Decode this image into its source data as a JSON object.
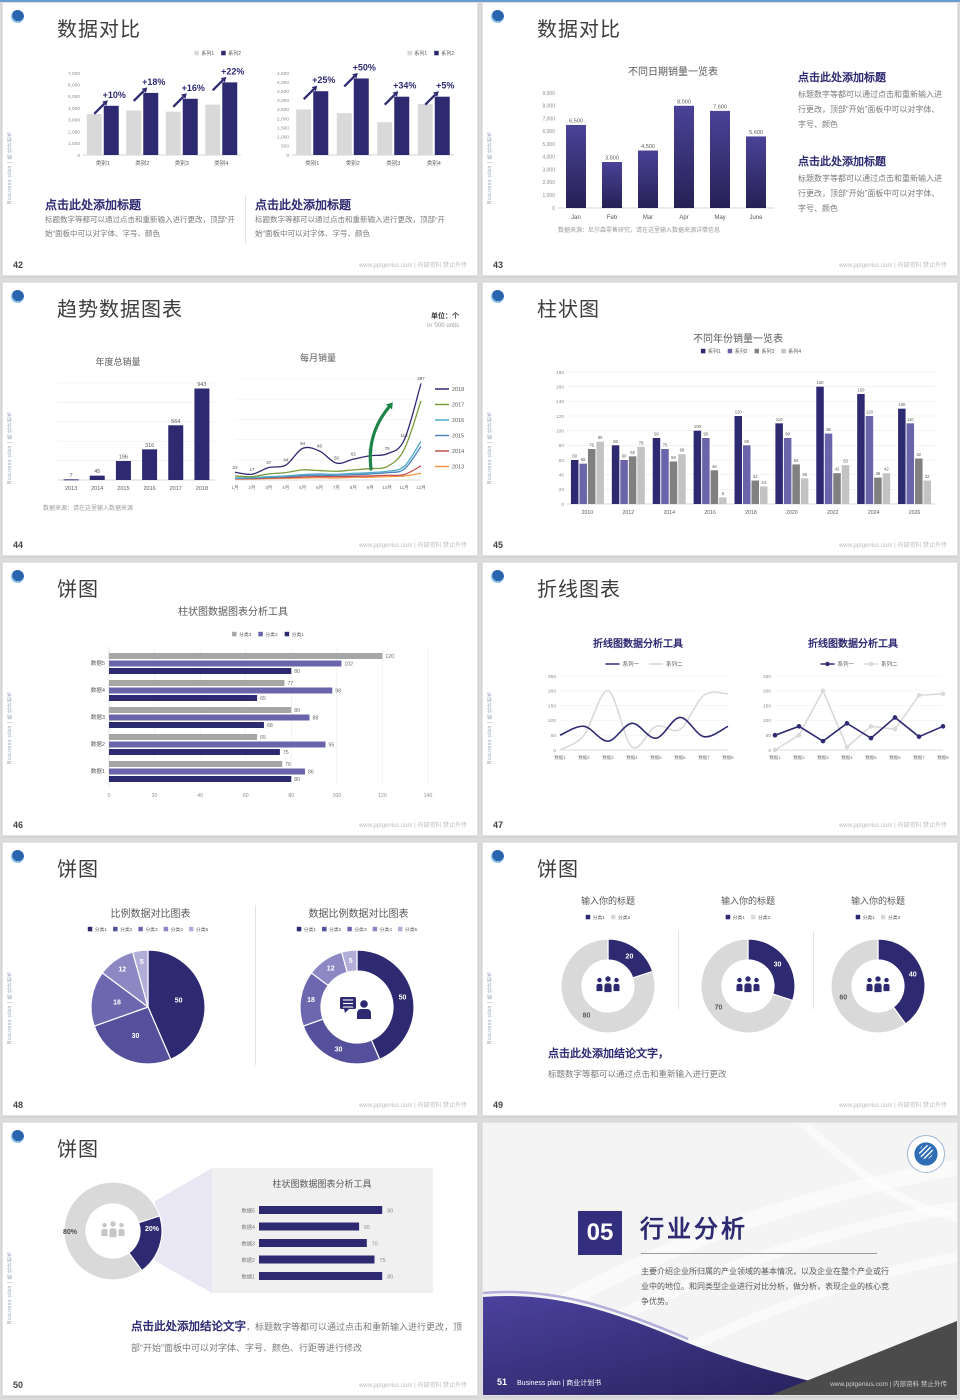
{
  "global": {
    "footer_url": "www.pptgenius.com | 内部资料 禁止外传",
    "sidebar_text": "Business plan | 商业计划书"
  },
  "palette": {
    "navy": "#2e2a72",
    "midPurple": "#6a64ab",
    "grayBar": "#d9d9d9",
    "gray3": "#808080",
    "gray4": "#c3c3c3",
    "grayA": "#a6a6a6",
    "green": "#1e8449",
    "pie": [
      "#2e2a72",
      "#55509c",
      "#6d67b0",
      "#8d88c4",
      "#b3aed8"
    ],
    "years": [
      "#2e2a72",
      "#7c9b3c",
      "#4bacc6",
      "#4f81bd",
      "#c0504d",
      "#f79646"
    ],
    "line2": [
      "#2e2a72",
      "#d9d9d9"
    ]
  },
  "slides": [
    {
      "page": "42",
      "title": "数据对比",
      "chart_data": [
        {
          "type": "bar",
          "legend": [
            "系列1",
            "系列2"
          ],
          "categories": [
            "类别1",
            "类别2",
            "类别3",
            "类别4"
          ],
          "series": [
            {
              "name": "系列1",
              "values": [
                3500,
                3800,
                3700,
                4300
              ]
            },
            {
              "name": "系列2",
              "values": [
                4200,
                5300,
                4800,
                6200
              ]
            }
          ],
          "annotations": [
            "+10%",
            "+18%",
            "+16%",
            "+22%"
          ],
          "ylim": [
            0,
            7000
          ],
          "ytick": 1000
        },
        {
          "type": "bar",
          "legend": [
            "系列1",
            "系列2"
          ],
          "categories": [
            "类别1",
            "类别2",
            "类别3",
            "类别4"
          ],
          "series": [
            {
              "name": "系列1",
              "values": [
                2500,
                2300,
                1800,
                2800
              ]
            },
            {
              "name": "系列2",
              "values": [
                3500,
                4200,
                3200,
                3200
              ]
            }
          ],
          "annotations": [
            "+25%",
            "+50%",
            "+34%",
            "+5%"
          ],
          "ylim": [
            0,
            4500
          ],
          "ytick": 500
        }
      ],
      "blocks": [
        {
          "heading": "点击此处添加标题",
          "body": "标题数字等都可以通过点击和重新输入进行更改，顶部“开始”面板中可以对字体、字号、颜色"
        },
        {
          "heading": "点击此处添加标题",
          "body": "标题数字等都可以通过点击和重新输入进行更改，顶部“开始”面板中可以对字体、字号、颜色"
        }
      ]
    },
    {
      "page": "43",
      "title": "数据对比",
      "chart_data": {
        "type": "bar",
        "title": "不同日期销量一览表",
        "categories": [
          "Jan",
          "Feb",
          "Mar",
          "Apr",
          "May",
          "June"
        ],
        "values": [
          6500,
          3600,
          4500,
          8000,
          7600,
          5600
        ],
        "labels": [
          "6,500",
          "3,600",
          "4,500",
          "8,000",
          "7,600",
          "5,600"
        ],
        "ylim": [
          0,
          9000
        ],
        "ytick": 1000
      },
      "source": "数据来源：尼尔森零售研究，请在这里输入数据来源详情信息",
      "blocks": [
        {
          "heading": "点击此处添加标题",
          "body": "标题数字等都可以通过点击和重新输入进行更改，顶部“开始”面板中可以对字体、字号、颜色"
        },
        {
          "heading": "点击此处添加标题",
          "body": "标题数字等都可以通过点击和重新输入进行更改，顶部“开始”面板中可以对字体、字号、颜色"
        }
      ]
    },
    {
      "page": "44",
      "title": "趋势数据图表",
      "unit": "单位：个",
      "unit_sub": "in '000 units",
      "chart_data": [
        {
          "type": "bar",
          "title": "年度总销量",
          "categories": [
            "2013",
            "2014",
            "2015",
            "2016",
            "2017",
            "2018"
          ],
          "values": [
            7,
            45,
            196,
            316,
            564,
            943
          ],
          "ylim": [
            0,
            1000
          ],
          "ytick": 200
        },
        {
          "type": "line",
          "title": "每月销量",
          "x": [
            "1月",
            "2月",
            "3月",
            "4月",
            "5月",
            "6月",
            "7月",
            "8月",
            "9月",
            "10月",
            "11月",
            "12月"
          ],
          "series": [
            {
              "name": "2018",
              "values": [
                23,
                17,
                37,
                44,
                94,
                86,
                50,
                62,
                72,
                78,
                118,
                287
              ]
            },
            {
              "name": "2017",
              "values": [
                12,
                10,
                18,
                22,
                30,
                28,
                26,
                30,
                34,
                40,
                90,
                235
              ]
            },
            {
              "name": "2016",
              "values": [
                6,
                7,
                10,
                12,
                16,
                18,
                17,
                20,
                22,
                26,
                40,
                115
              ]
            },
            {
              "name": "2015",
              "values": [
                5,
                6,
                8,
                10,
                13,
                14,
                14,
                16,
                18,
                22,
                32,
                100
              ]
            },
            {
              "name": "2014",
              "values": [
                4,
                4,
                6,
                7,
                9,
                10,
                10,
                11,
                12,
                14,
                16,
                42
              ]
            },
            {
              "name": "2013",
              "values": [
                3,
                3,
                4,
                5,
                6,
                7,
                6,
                8,
                8,
                10,
                12,
                20
              ]
            }
          ],
          "ylim": [
            0,
            300
          ]
        }
      ],
      "source": "数据来源：请在这里输入数据来源"
    },
    {
      "page": "45",
      "title": "柱状图",
      "chart_data": {
        "type": "bar",
        "title": "不同年份销量一览表",
        "legend": [
          "系列1",
          "系列2",
          "系列3",
          "系列4"
        ],
        "categories": [
          "2010",
          "2012",
          "2014",
          "2016",
          "2018",
          "2020",
          "2022",
          "2024",
          "2026"
        ],
        "series": [
          {
            "name": "系列1",
            "values": [
              60,
              80,
              90,
              100,
              120,
              110,
              160,
              150,
              130
            ]
          },
          {
            "name": "系列2",
            "values": [
              55,
              60,
              75,
              90,
              80,
              90,
              96,
              120,
              110
            ]
          },
          {
            "name": "系列3",
            "values": [
              75,
              65,
              58,
              46,
              32,
              54,
              42,
              36,
              62
            ]
          },
          {
            "name": "系列4",
            "values": [
              85,
              78,
              68,
              9,
              24,
              35,
              53,
              42,
              32
            ]
          }
        ],
        "ylim": [
          0,
          180
        ],
        "ytick": 20
      }
    },
    {
      "page": "46",
      "title": "饼图",
      "chart_data": {
        "type": "bar",
        "orientation": "horizontal",
        "title": "柱状图数据图表分析工具",
        "legend": [
          "分类3",
          "分类2",
          "分类1"
        ],
        "categories": [
          "数据5",
          "数据4",
          "数据3",
          "数据2",
          "数据1"
        ],
        "series": [
          {
            "name": "分类1",
            "values": [
              80,
              65,
              68,
              75,
              80
            ]
          },
          {
            "name": "分类2",
            "values": [
              102,
              98,
              88,
              95,
              86
            ]
          },
          {
            "name": "分类3",
            "values": [
              120,
              77,
              80,
              65,
              76
            ]
          }
        ],
        "xlim": [
          0,
          140
        ],
        "xtick": 20
      }
    },
    {
      "page": "47",
      "title": "折线图表",
      "chart_data": [
        {
          "type": "line",
          "title": "折线图数据分析工具",
          "legend": [
            "系列一",
            "系列二"
          ],
          "x": [
            "数据1",
            "数据2",
            "数据3",
            "数据4",
            "数据5",
            "数据6",
            "数据7",
            "数据8"
          ],
          "series": [
            {
              "name": "系列一",
              "values": [
                50,
                80,
                30,
                90,
                40,
                110,
                45,
                80
              ]
            },
            {
              "name": "系列二",
              "values": [
                0,
                50,
                200,
                10,
                80,
                70,
                185,
                190
              ]
            }
          ],
          "ylim": [
            0,
            250
          ],
          "ytick": 50,
          "markers": false
        },
        {
          "type": "line",
          "title": "折线图数据分析工具",
          "legend": [
            "系列一",
            "系列二"
          ],
          "x": [
            "数据1",
            "数据2",
            "数据3",
            "数据4",
            "数据5",
            "数据6",
            "数据7",
            "数据8"
          ],
          "series": [
            {
              "name": "系列一",
              "values": [
                50,
                80,
                30,
                90,
                40,
                110,
                45,
                80
              ]
            },
            {
              "name": "系列二",
              "values": [
                0,
                50,
                200,
                10,
                80,
                70,
                185,
                190
              ]
            }
          ],
          "ylim": [
            0,
            250
          ],
          "ytick": 50,
          "markers": true
        }
      ]
    },
    {
      "page": "48",
      "title": "饼图",
      "chart_data": [
        {
          "type": "pie",
          "title": "比例数据对比图表",
          "legend": [
            "分类1",
            "分类2",
            "分类3",
            "分类4",
            "分类5"
          ],
          "values": [
            50,
            30,
            18,
            12,
            5
          ]
        },
        {
          "type": "pie",
          "donut": true,
          "title": "数据比例数据对比图表",
          "legend": [
            "分类1",
            "分类2",
            "分类3",
            "分类4",
            "分类5"
          ],
          "values": [
            50,
            30,
            18,
            12,
            5
          ],
          "center_icon": "presenter-icon"
        }
      ]
    },
    {
      "page": "49",
      "title": "饼图",
      "chart_data": [
        {
          "type": "pie",
          "donut": true,
          "title": "输入你的标题",
          "legend": [
            "分类1",
            "分类2"
          ],
          "values": [
            20,
            80
          ],
          "center_icon": "team-icon"
        },
        {
          "type": "pie",
          "donut": true,
          "title": "输入你的标题",
          "legend": [
            "分类1",
            "分类2"
          ],
          "values": [
            30,
            70
          ],
          "center_icon": "team-icon"
        },
        {
          "type": "pie",
          "donut": true,
          "title": "输入你的标题",
          "legend": [
            "分类1",
            "分类2"
          ],
          "values": [
            40,
            60
          ],
          "center_icon": "team-icon"
        }
      ],
      "conclusion_heading": "点击此处添加结论文字，",
      "conclusion_body": "标题数字等都可以通过点击和重新输入进行更改"
    },
    {
      "page": "50",
      "title": "饼图",
      "chart_data": [
        {
          "type": "pie",
          "donut": true,
          "values": [
            20,
            80
          ],
          "labels": [
            "20%",
            "80%"
          ],
          "center_icon": "team-icon"
        },
        {
          "type": "bar",
          "orientation": "horizontal",
          "title": "柱状图数据图表分析工具",
          "categories": [
            "数据5",
            "数据4",
            "数据3",
            "数据2",
            "数据1"
          ],
          "values": [
            80,
            65,
            70,
            75,
            80
          ],
          "xlim": [
            0,
            140
          ]
        }
      ],
      "conclusion_heading": "点击此处添加结论文字",
      "conclusion_body": "，标题数字等都可以通过点击和重新输入进行更改，顶部“开始”面板中可以对字体、字号、颜色、行距等进行修改"
    },
    {
      "page": "51",
      "number": "05",
      "title": "行业分析",
      "body": "主要介绍企业所归属的产业领域的基本情况，以及企业在整个产业或行业中的地位。和同类型企业进行对比分析，做分析，表现企业的核心竞争优势。",
      "footer_left": "Business plan | 商业计划书"
    }
  ]
}
